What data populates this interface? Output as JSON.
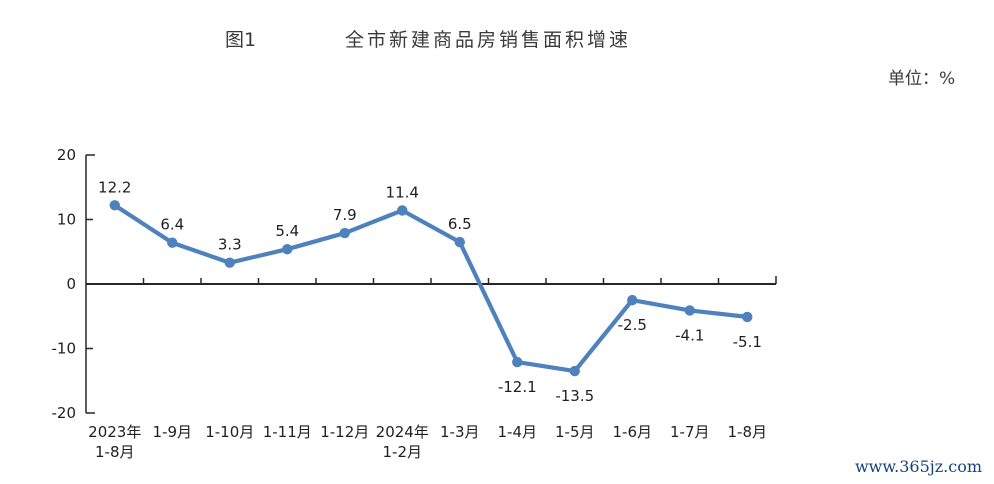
{
  "header": {
    "figure_label": "图1",
    "title": "全市新建商品房销售面积增速",
    "unit_label": "单位：%"
  },
  "watermark": "www.365jz.com",
  "chart_data": {
    "type": "line",
    "title": "全市新建商品房销售面积增速",
    "categories": [
      "2023年\n1-8月",
      "1-9月",
      "1-10月",
      "1-11月",
      "1-12月",
      "2024年\n1-2月",
      "1-3月",
      "1-4月",
      "1-5月",
      "1-6月",
      "1-7月",
      "1-8月"
    ],
    "values": [
      12.2,
      6.4,
      3.3,
      5.4,
      7.9,
      11.4,
      6.5,
      -12.1,
      -13.5,
      -2.5,
      -4.1,
      -5.1
    ],
    "ylim": [
      -20,
      20
    ],
    "y_ticks": [
      20,
      10,
      0,
      -10,
      -20
    ],
    "xlabel": "",
    "ylabel": "",
    "unit": "%",
    "line_color": "#4f81bd",
    "axis_color": "#262626",
    "label_color": "#1f1f1f",
    "marker": "circle",
    "data_labels": true,
    "legend": "none",
    "grid": false
  }
}
